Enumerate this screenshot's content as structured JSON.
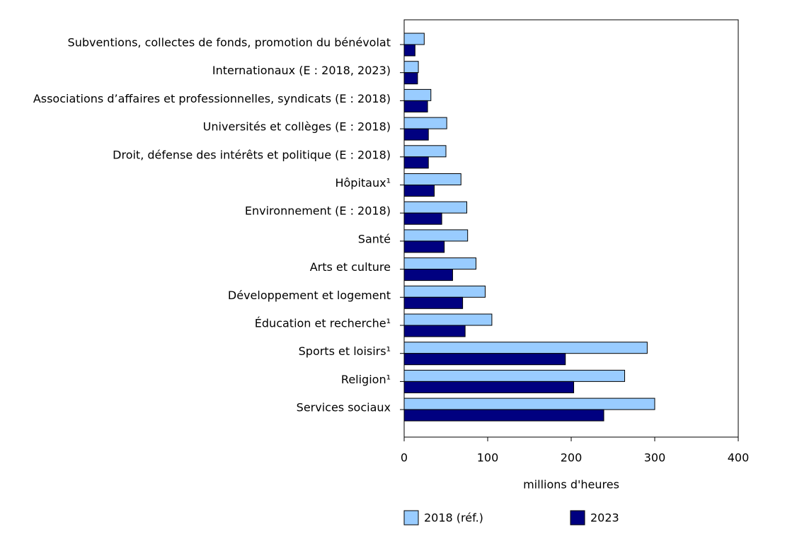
{
  "chart_data": {
    "type": "bar",
    "orientation": "horizontal",
    "categories": [
      "Subventions, collectes de fonds, promotion du bénévolat",
      "Internationaux (E : 2018, 2023)",
      "Associations d’affaires et professionnelles, syndicats (E : 2018)",
      "Universités et collèges (E : 2018)",
      "Droit, défense des intérêts et politique (E : 2018)",
      "Hôpitaux¹",
      "Environnement (E : 2018)",
      "Santé",
      "Arts et culture",
      "Développement et logement",
      "Éducation et recherche¹",
      "Sports et loisirs¹",
      "Religion¹",
      "Services sociaux"
    ],
    "series": [
      {
        "name": "2018 (réf.)",
        "color": "#99ccff",
        "values": [
          24,
          17,
          32,
          51,
          50,
          68,
          75,
          76,
          86,
          97,
          105,
          291,
          264,
          300
        ]
      },
      {
        "name": "2023",
        "color": "#000080",
        "values": [
          13,
          16,
          28,
          29,
          29,
          36,
          45,
          48,
          58,
          70,
          73,
          193,
          203,
          239
        ]
      }
    ],
    "xlim": [
      0,
      400
    ],
    "xticks": [
      0,
      100,
      200,
      300,
      400
    ],
    "xlabel": "millions d'heures",
    "grid": false,
    "legend": "bottom"
  }
}
